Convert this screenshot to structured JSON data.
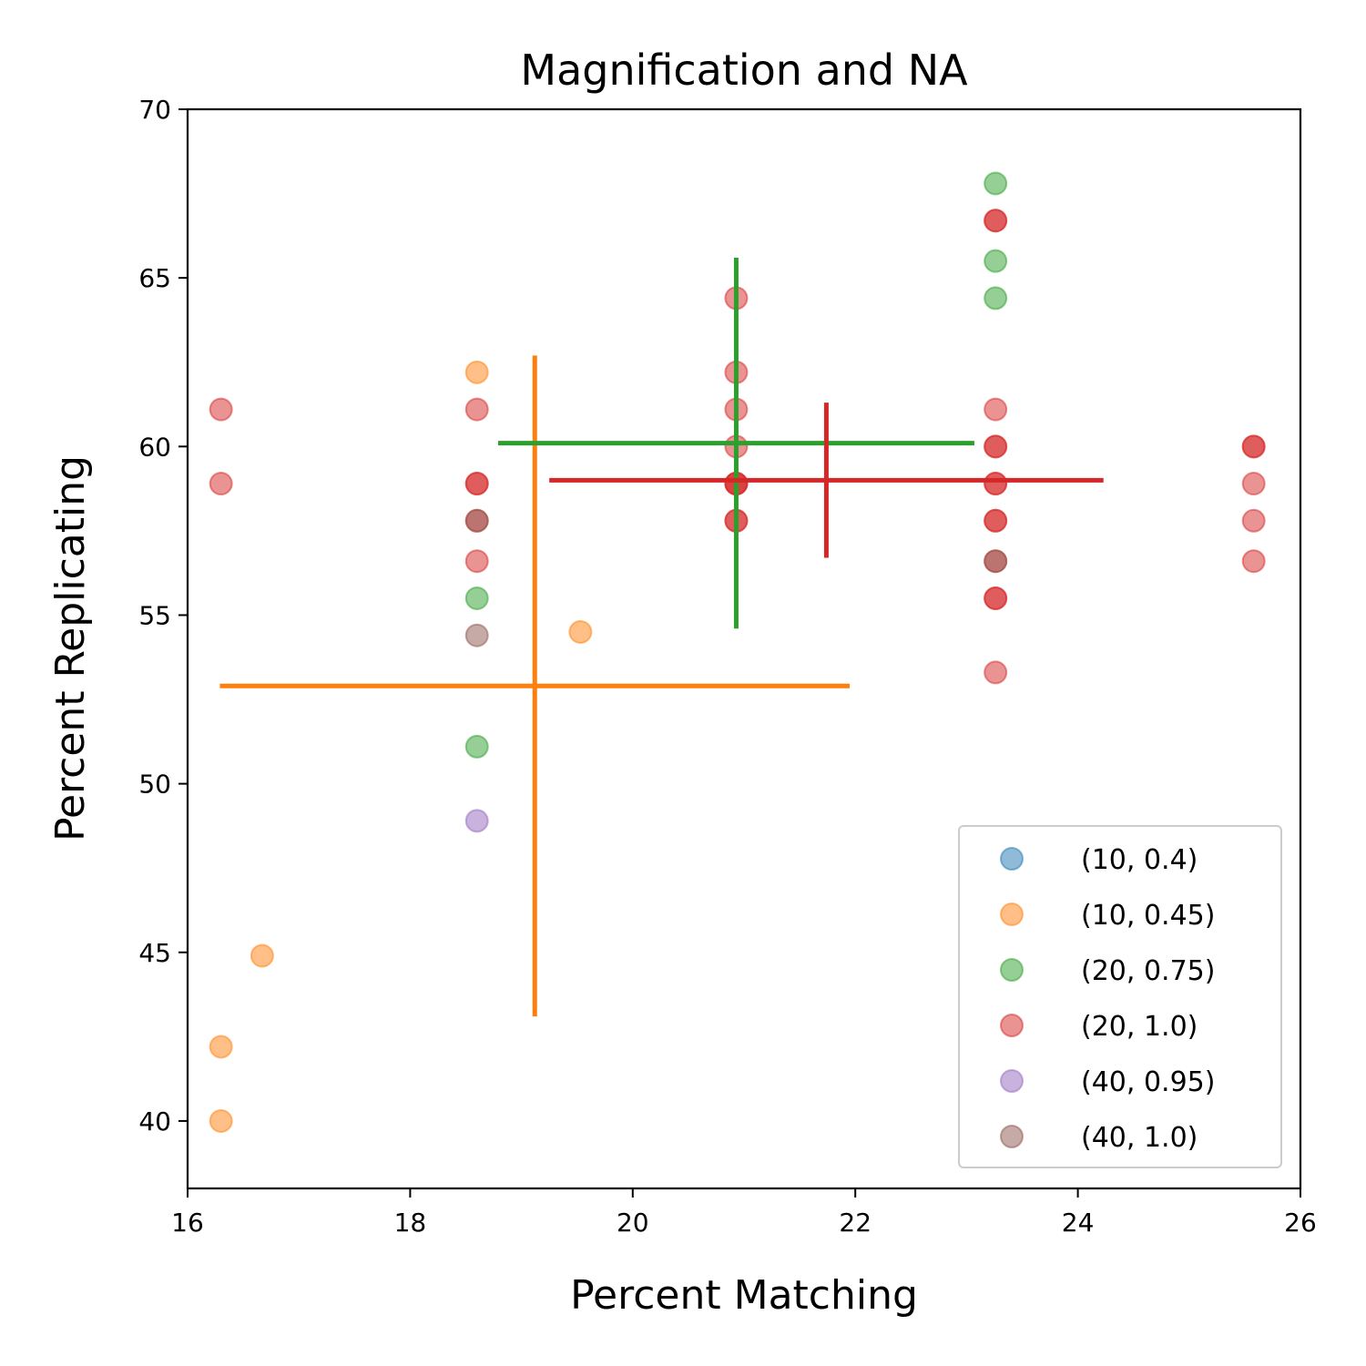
{
  "chart_data": {
    "type": "scatter",
    "title": "Magnification and NA",
    "xlabel": "Percent Matching",
    "ylabel": "Percent Replicating",
    "xlim": [
      16,
      26
    ],
    "ylim": [
      38,
      70
    ],
    "xticks": [
      "16",
      "18",
      "20",
      "22",
      "24",
      "26"
    ],
    "yticks": [
      "40",
      "45",
      "50",
      "55",
      "60",
      "65",
      "70"
    ],
    "grid": false,
    "legend_position": "lower-right",
    "series": [
      {
        "name": "(10, 0.4)",
        "color": "#1f77b4",
        "points": []
      },
      {
        "name": "(10, 0.45)",
        "color": "#ff7f0e",
        "points": [
          [
            16.3,
            40.0
          ],
          [
            16.3,
            42.2
          ],
          [
            16.67,
            44.9
          ],
          [
            18.6,
            62.2
          ],
          [
            19.53,
            54.5
          ]
        ],
        "mean": [
          19.12,
          52.9
        ],
        "xerr": 2.83,
        "yerr": 9.8
      },
      {
        "name": "(20, 0.75)",
        "color": "#2ca02c",
        "points": [
          [
            18.6,
            51.1
          ],
          [
            18.6,
            55.5
          ],
          [
            23.26,
            64.4
          ],
          [
            23.26,
            65.5
          ],
          [
            23.26,
            67.8
          ]
        ],
        "mean": [
          20.93,
          60.1
        ],
        "xerr": 2.14,
        "yerr": 5.5
      },
      {
        "name": "(20, 1.0)",
        "color": "#d62728",
        "points": [
          [
            16.3,
            58.9
          ],
          [
            16.3,
            61.1
          ],
          [
            18.6,
            56.6
          ],
          [
            18.6,
            57.8
          ],
          [
            18.6,
            58.9
          ],
          [
            18.6,
            58.9
          ],
          [
            18.6,
            61.1
          ],
          [
            20.93,
            57.8
          ],
          [
            20.93,
            57.8
          ],
          [
            20.93,
            58.9
          ],
          [
            20.93,
            58.9
          ],
          [
            20.93,
            58.9
          ],
          [
            20.93,
            60.0
          ],
          [
            20.93,
            61.1
          ],
          [
            20.93,
            62.2
          ],
          [
            20.93,
            64.4
          ],
          [
            23.26,
            53.3
          ],
          [
            23.26,
            55.5
          ],
          [
            23.26,
            55.5
          ],
          [
            23.26,
            56.6
          ],
          [
            23.26,
            57.8
          ],
          [
            23.26,
            57.8
          ],
          [
            23.26,
            58.9
          ],
          [
            23.26,
            58.9
          ],
          [
            23.26,
            60.0
          ],
          [
            23.26,
            60.0
          ],
          [
            23.26,
            61.1
          ],
          [
            23.26,
            66.7
          ],
          [
            23.26,
            66.7
          ],
          [
            25.58,
            56.6
          ],
          [
            25.58,
            57.8
          ],
          [
            25.58,
            58.9
          ],
          [
            25.58,
            60.0
          ],
          [
            25.58,
            60.0
          ]
        ],
        "mean": [
          21.74,
          59.0
        ],
        "xerr": 2.49,
        "yerr": 2.3
      },
      {
        "name": "(40, 0.95)",
        "color": "#9467bd",
        "points": [
          [
            18.6,
            48.9
          ]
        ]
      },
      {
        "name": "(40, 1.0)",
        "color": "#8c564b",
        "points": [
          [
            18.6,
            54.4
          ],
          [
            18.6,
            57.8
          ],
          [
            23.26,
            56.6
          ]
        ]
      }
    ]
  }
}
